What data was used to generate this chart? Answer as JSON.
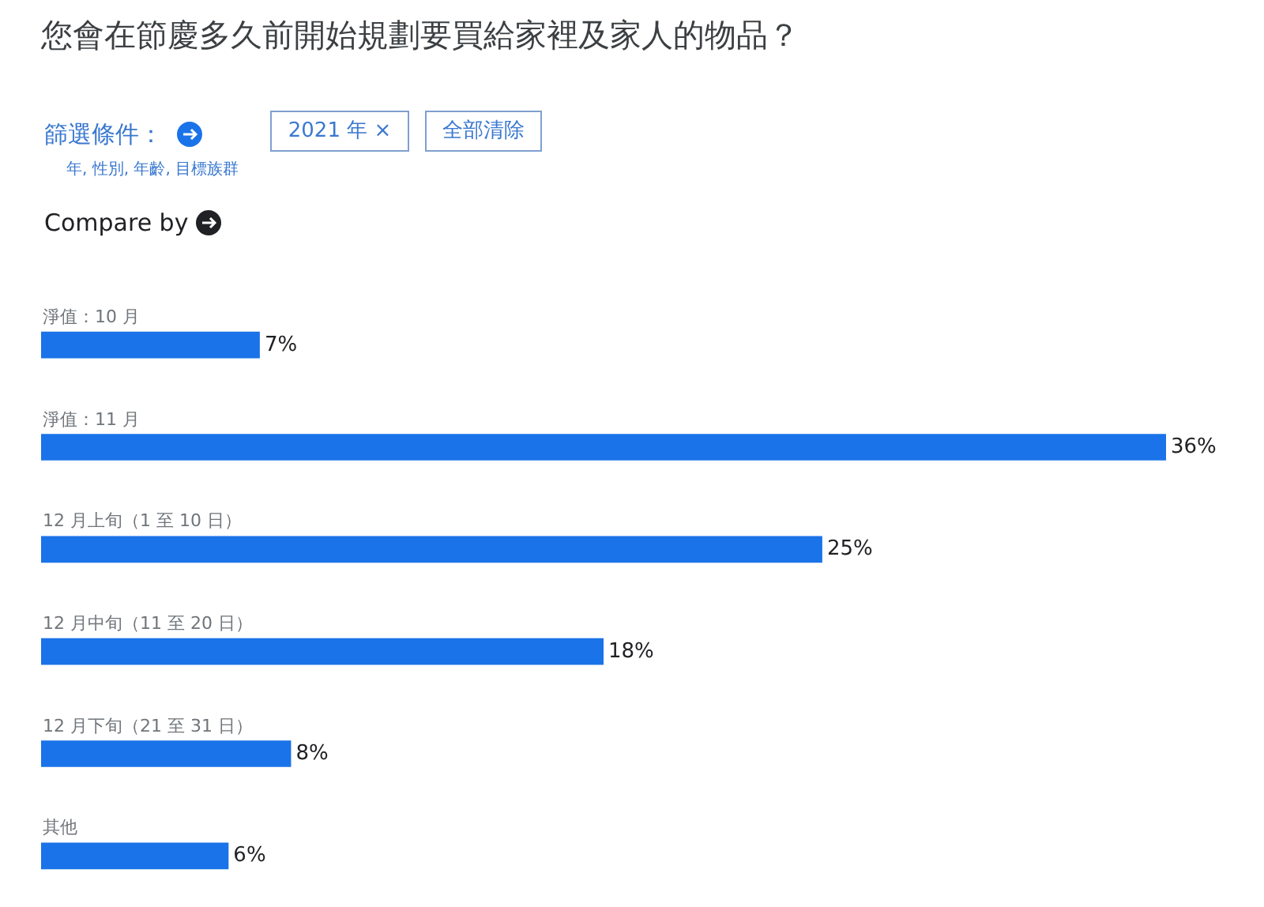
{
  "chart_data": {
    "type": "bar",
    "orientation": "horizontal",
    "title": "您會在節慶多久前開始規劃要買給家裡及家人的物品？",
    "categories": [
      "淨值：10 月",
      "淨值：11 月",
      "12 月上旬（1 至 10 日）",
      "12 月中旬（11 至 20 日）",
      "12 月下旬（21 至 31 日）",
      "其他"
    ],
    "values": [
      7,
      36,
      25,
      18,
      8,
      6
    ],
    "value_labels": [
      "7%",
      "36%",
      "25%",
      "18%",
      "8%",
      "6%"
    ],
    "color": "#1a73e8",
    "tick_labels": "y",
    "annotations": [
      "篩選條件：",
      "2021 年 ×",
      "全部清除",
      "年, 性別, 年齡, 目標族群",
      "Compare by"
    ]
  }
}
